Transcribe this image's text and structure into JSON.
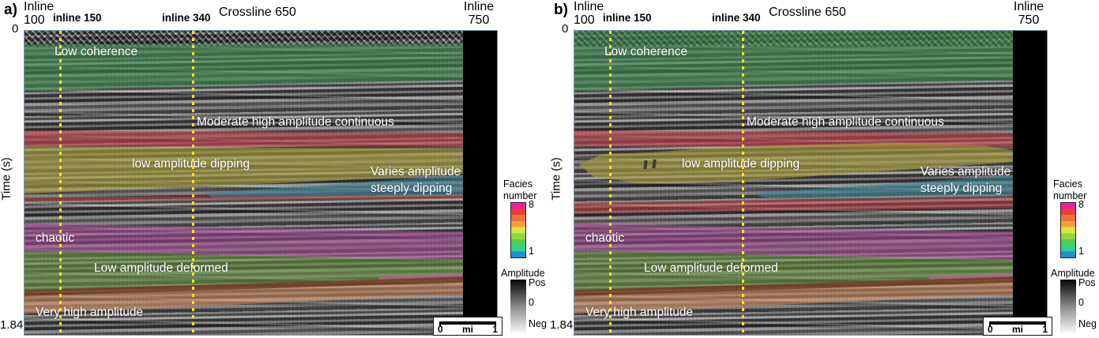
{
  "figure": {
    "panels": [
      {
        "tag": "a)",
        "header": {
          "inline_word": "Inline",
          "inline_start": "100",
          "inline_150": "inline 150",
          "inline_340": "inline 340",
          "crossline": "Crossline 650",
          "inline_end_word": "Inline",
          "inline_end": "750"
        },
        "time_axis": {
          "label": "Time (s)",
          "start": "0",
          "end": "1.84"
        },
        "annotations": {
          "low_coherence": "Low coherence",
          "moderate_high": "Moderate high amplitude continuous",
          "low_amp_dipping": "low amplitude dipping",
          "varies_line1": "Varies amplitude",
          "varies_line2": "steeply dipping",
          "chaotic": "chaotic",
          "low_amp_deformed": "Low amplitude deformed",
          "very_high_amp": "Very high amplitude"
        },
        "facies_legend": {
          "title_line1": "Facies",
          "title_line2": "number",
          "max": "8",
          "min": "1"
        },
        "amplitude_legend": {
          "title": "Amplitude",
          "pos": "Pos",
          "zero": "0",
          "neg": "Neg"
        },
        "scale_bar": {
          "start": "0",
          "unit": "mi",
          "end": "1"
        }
      },
      {
        "tag": "b)",
        "header": {
          "inline_word": "Inline",
          "inline_start": "100",
          "inline_150": "inline 150",
          "inline_340": "inline 340",
          "crossline": "Crossline 650",
          "inline_end_word": "Inline",
          "inline_end": "750"
        },
        "time_axis": {
          "label": "Time (s)",
          "start": "0",
          "end": "1.84"
        },
        "annotations": {
          "low_coherence": "Low coherence",
          "moderate_high": "Moderate high amplitude continuous",
          "low_amp_dipping": "low amplitude dipping",
          "varies_line1": "Varies amplitude",
          "varies_line2": "steeply dipping",
          "chaotic": "chaotic",
          "low_amp_deformed": "Low amplitude deformed",
          "very_high_amp": "Very high amplitude"
        },
        "facies_legend": {
          "title_line1": "Facies",
          "title_line2": "number",
          "max": "8",
          "min": "1"
        },
        "amplitude_legend": {
          "title": "Amplitude",
          "pos": "Pos",
          "zero": "0",
          "neg": "Neg"
        },
        "scale_bar": {
          "start": "0",
          "unit": "mi",
          "end": "1"
        }
      }
    ],
    "colors": {
      "facies_scale": [
        "#f21f9b",
        "#e94138",
        "#f2703c",
        "#f59e3e",
        "#d8e53c",
        "#8fd63f",
        "#4fcf52",
        "#2fcf8f",
        "#1f8fd0"
      ],
      "overlay_low_coherence_green": "#3a8c4e",
      "overlay_moderate_high_red": "#c33c46",
      "overlay_low_amp_dipping_olive": "#a89e3a",
      "overlay_steeply_dipping_teal": "#3a8496",
      "overlay_chaotic_purple": "#a84898",
      "overlay_deformed_green": "#69983e",
      "overlay_very_high_tan": "#d08e60",
      "overlay_very_high_brown": "#5c2e16",
      "inline_marker_yellow": "#ffe41a",
      "data_gap_black": "#000000"
    }
  }
}
